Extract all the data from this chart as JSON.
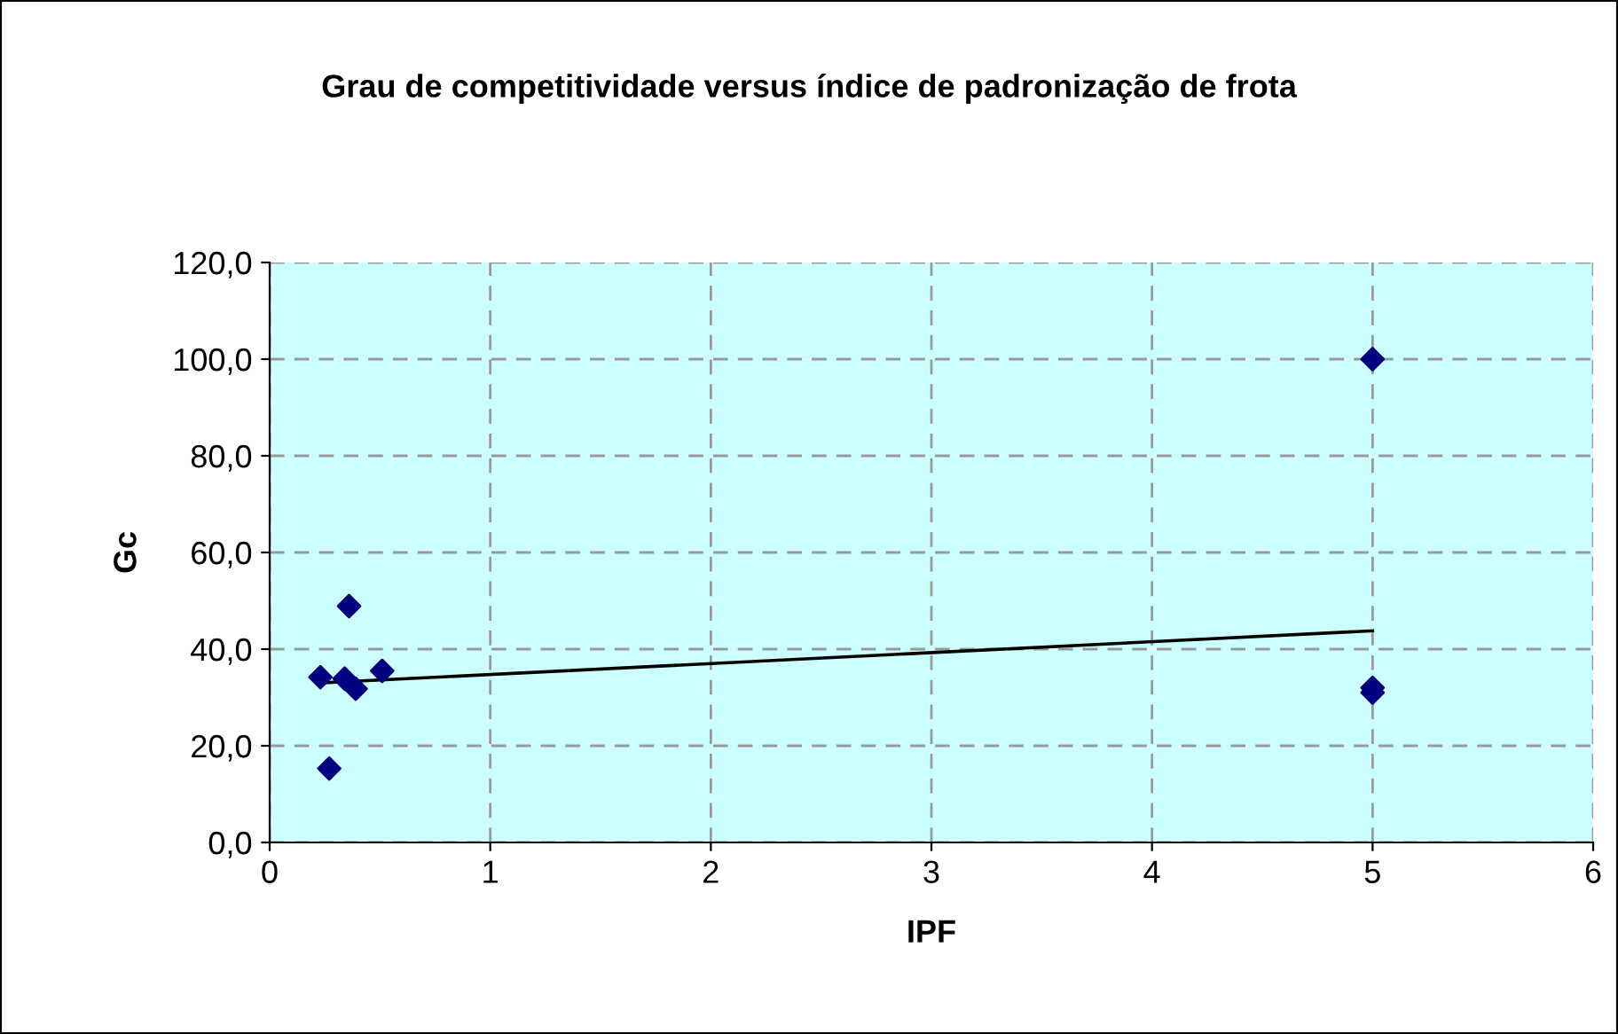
{
  "chart_data": {
    "type": "scatter",
    "title": "Grau de competitividade versus índice de padronização de frota",
    "xlabel": "IPF",
    "ylabel": "Gc",
    "series": [
      {
        "color": "#000080",
        "marker": "diamond",
        "x": [
          0.23,
          0.27,
          0.36,
          0.34,
          0.39,
          0.51,
          5.0,
          5.0,
          5.0
        ],
        "values": [
          34.2,
          15.3,
          48.9,
          33.9,
          31.8,
          35.5,
          100.0,
          32.0,
          31.0
        ]
      },
      {
        "type": "line",
        "color": "#000000",
        "x": [
          0.23,
          5.0
        ],
        "values": [
          33.0,
          43.8
        ]
      }
    ],
    "xlim": [
      0,
      6
    ],
    "xticks": [
      0,
      1,
      2,
      3,
      4,
      5,
      6
    ],
    "ylim": [
      0,
      120
    ],
    "yticks": [
      {
        "value": 0,
        "label": "0,0"
      },
      {
        "value": 20,
        "label": "20,0"
      },
      {
        "value": 40,
        "label": "40,0"
      },
      {
        "value": 60,
        "label": "60,0"
      },
      {
        "value": 80,
        "label": "80,0"
      },
      {
        "value": 100,
        "label": "100,0"
      },
      {
        "value": 120,
        "label": "120,0"
      }
    ],
    "grid": true,
    "legend": false
  }
}
